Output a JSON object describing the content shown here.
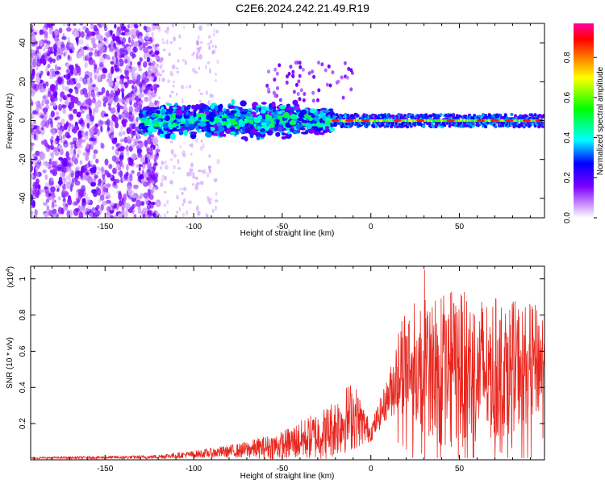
{
  "title": "C2E6.2024.242.21.49.R19",
  "chart_data": [
    {
      "type": "heatmap",
      "xlabel": "Height of straight line (km)",
      "ylabel": "Frequency (Hz)",
      "xlim": [
        -192,
        98
      ],
      "ylim": [
        -50,
        50
      ],
      "xticks": [
        -150,
        -100,
        -50,
        0,
        50
      ],
      "yticks": [
        -40,
        -20,
        0,
        20,
        40
      ],
      "colorbar": {
        "label": "Normalized spectral amplitude",
        "range": [
          0.0,
          0.97
        ],
        "ticks": [
          0.0,
          0.2,
          0.4,
          0.6,
          0.8
        ],
        "colormap": [
          "#ffffff",
          "#8000ff",
          "#0000ff",
          "#00ffff",
          "#00ff00",
          "#ffff00",
          "#ff8000",
          "#ff0000",
          "#ff00a0"
        ]
      },
      "description_points": [
        {
          "x_range": [
            -192,
            -125
          ],
          "freq_spread": [
            -50,
            50
          ],
          "amplitude": 0.1
        },
        {
          "x_range": [
            -125,
            -25
          ],
          "freq_spread": [
            -10,
            10
          ],
          "amplitude": 0.3
        },
        {
          "x_range": [
            -25,
            98
          ],
          "freq_spread": [
            -2,
            2
          ],
          "amplitude": 0.8
        }
      ]
    },
    {
      "type": "line",
      "xlabel": "Height of straight line (km)",
      "ylabel": "SNR (10 * v/v)",
      "scale_label": "(x10",
      "scale_exp": "4",
      "xlim": [
        -192,
        98
      ],
      "ylim": [
        0,
        1.07
      ],
      "xticks": [
        -150,
        -100,
        -50,
        0,
        50
      ],
      "yticks": [
        0.2,
        0.4,
        0.6,
        0.8,
        1.0
      ],
      "series": [
        {
          "color": "#e8261e",
          "envelope": [
            {
              "x": -192,
              "mean": 0.01,
              "amp": 0.005
            },
            {
              "x": -125,
              "mean": 0.015,
              "amp": 0.01
            },
            {
              "x": -100,
              "mean": 0.03,
              "amp": 0.02
            },
            {
              "x": -75,
              "mean": 0.05,
              "amp": 0.04
            },
            {
              "x": -50,
              "mean": 0.08,
              "amp": 0.08
            },
            {
              "x": -25,
              "mean": 0.15,
              "amp": 0.15
            },
            {
              "x": -10,
              "mean": 0.25,
              "amp": 0.2
            },
            {
              "x": 0,
              "mean": 0.15,
              "amp": 0.05
            },
            {
              "x": 10,
              "mean": 0.35,
              "amp": 0.12
            },
            {
              "x": 18,
              "mean": 0.55,
              "amp": 0.3
            },
            {
              "x": 40,
              "mean": 0.5,
              "amp": 0.45
            },
            {
              "x": 70,
              "mean": 0.5,
              "amp": 0.4
            },
            {
              "x": 98,
              "mean": 0.55,
              "amp": 0.3
            }
          ]
        }
      ]
    }
  ]
}
